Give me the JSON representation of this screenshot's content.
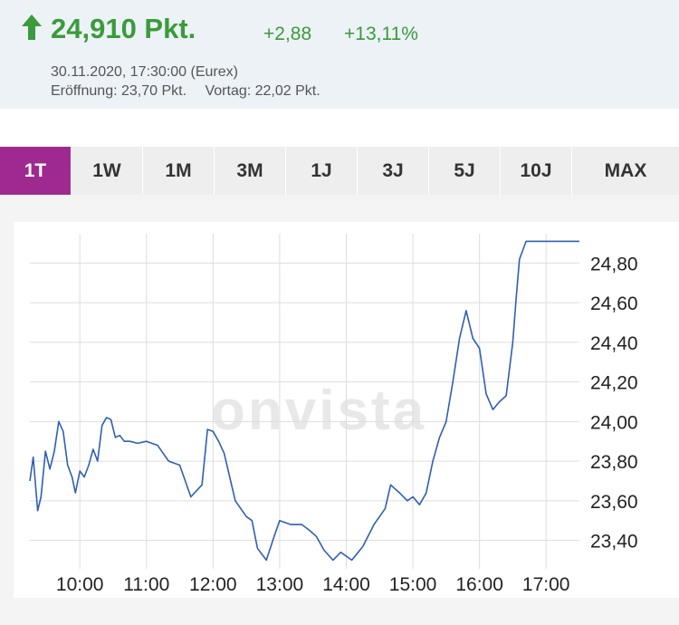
{
  "quote": {
    "price": "24,910 Pkt.",
    "change_abs": "+2,88",
    "change_pct": "+13,11%",
    "timestamp": "30.11.2020, 17:30:00 (Eurex)",
    "open": "Eröffnung: 23,70 Pkt.",
    "prev": "Vortag: 22,02 Pkt.",
    "trend_icon": "arrow-up-icon",
    "accent_color": "#3a9b3a"
  },
  "tabs": [
    {
      "label": "1T",
      "active": true
    },
    {
      "label": "1W"
    },
    {
      "label": "1M"
    },
    {
      "label": "3M"
    },
    {
      "label": "1J"
    },
    {
      "label": "3J"
    },
    {
      "label": "5J"
    },
    {
      "label": "10J"
    },
    {
      "label": "MAX"
    }
  ],
  "active_tab_color": "#9e2a8f",
  "watermark": "onvista",
  "chart_data": {
    "type": "line",
    "x_start": "09:15",
    "x_end": "17:30",
    "xticks": [
      "10:00",
      "11:00",
      "12:00",
      "13:00",
      "14:00",
      "15:00",
      "16:00",
      "17:00"
    ],
    "yticks": [
      "23,40",
      "23,60",
      "23,80",
      "24,00",
      "24,20",
      "24,40",
      "24,60",
      "24,80"
    ],
    "ylim": [
      23.27,
      24.93
    ],
    "grid": true,
    "line_color": "#2f5fb3",
    "x": [
      "09:15",
      "09:18",
      "09:22",
      "09:25",
      "09:29",
      "09:33",
      "09:37",
      "09:41",
      "09:45",
      "09:49",
      "09:53",
      "09:56",
      "10:00",
      "10:04",
      "10:08",
      "10:12",
      "10:16",
      "10:20",
      "10:24",
      "10:28",
      "10:32",
      "10:36",
      "10:40",
      "10:45",
      "10:52",
      "11:00",
      "11:10",
      "11:20",
      "11:30",
      "11:40",
      "11:50",
      "11:55",
      "12:00",
      "12:05",
      "12:10",
      "12:15",
      "12:20",
      "12:25",
      "12:30",
      "12:35",
      "12:40",
      "12:48",
      "12:55",
      "13:00",
      "13:10",
      "13:20",
      "13:27",
      "13:33",
      "13:40",
      "13:48",
      "13:55",
      "14:05",
      "14:15",
      "14:25",
      "14:35",
      "14:40",
      "14:48",
      "14:55",
      "15:00",
      "15:06",
      "15:12",
      "15:18",
      "15:24",
      "15:30",
      "15:36",
      "15:42",
      "15:48",
      "15:54",
      "16:00",
      "16:06",
      "16:12",
      "16:18",
      "16:24",
      "16:30",
      "16:33",
      "16:36",
      "16:42",
      "16:48",
      "16:51",
      "16:54",
      "17:00",
      "17:06",
      "17:10",
      "17:15",
      "17:20",
      "17:25",
      "17:30"
    ],
    "y": [
      23.7,
      23.82,
      23.55,
      23.62,
      23.85,
      23.76,
      23.85,
      24.0,
      23.95,
      23.78,
      23.72,
      23.64,
      23.75,
      23.72,
      23.78,
      23.86,
      23.8,
      23.98,
      24.02,
      24.01,
      23.92,
      23.93,
      23.9,
      23.9,
      23.89,
      23.9,
      23.88,
      23.8,
      23.78,
      23.62,
      23.68,
      23.96,
      23.95,
      23.9,
      23.84,
      23.72,
      23.6,
      23.56,
      23.52,
      23.5,
      23.36,
      23.3,
      23.42,
      23.5,
      23.48,
      23.48,
      23.45,
      23.42,
      23.35,
      23.3,
      23.34,
      23.3,
      23.37,
      23.48,
      23.56,
      23.68,
      23.64,
      23.6,
      23.62,
      23.58,
      23.64,
      23.8,
      23.92,
      24.0,
      24.2,
      24.42,
      24.56,
      24.42,
      24.37,
      24.14,
      24.06,
      24.1,
      24.13,
      24.4,
      24.62,
      24.82,
      24.91,
      24.91,
      24.91,
      24.91,
      24.91,
      24.91,
      24.91,
      24.91,
      24.91,
      24.91,
      24.91
    ]
  }
}
